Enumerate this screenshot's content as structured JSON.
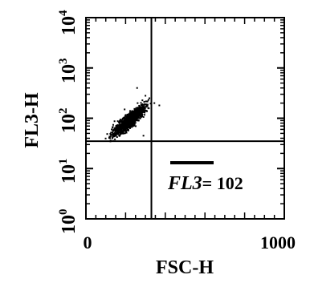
{
  "chart_data": {
    "type": "scatter",
    "xlabel": "FSC-H",
    "ylabel": "FL3-H",
    "xlim": [
      0,
      1000
    ],
    "ylim": [
      1,
      10000
    ],
    "yscale": "log",
    "x_tick_labels": [
      "0",
      "1000"
    ],
    "y_tick_labels": [
      {
        "base": "10",
        "exp": "0"
      },
      {
        "base": "10",
        "exp": "1"
      },
      {
        "base": "10",
        "exp": "2"
      },
      {
        "base": "10",
        "exp": "3"
      },
      {
        "base": "10",
        "exp": "4"
      }
    ],
    "quadrant_gate": {
      "x": 330,
      "y": 35
    },
    "annotation": {
      "italic": "FL3",
      "rest": "= 102"
    },
    "population": {
      "center_x": 220,
      "center_y": 90,
      "spread_x": 40,
      "spread_y_decades": 0.16,
      "orientation": "diagonal",
      "color": "#000000"
    },
    "outliers": [
      {
        "x": 195,
        "y": 150
      },
      {
        "x": 258,
        "y": 400
      },
      {
        "x": 320,
        "y": 250
      },
      {
        "x": 345,
        "y": 200
      },
      {
        "x": 370,
        "y": 180
      },
      {
        "x": 300,
        "y": 280
      },
      {
        "x": 130,
        "y": 60
      },
      {
        "x": 290,
        "y": 45
      },
      {
        "x": 160,
        "y": 60
      },
      {
        "x": 250,
        "y": 140
      }
    ]
  }
}
